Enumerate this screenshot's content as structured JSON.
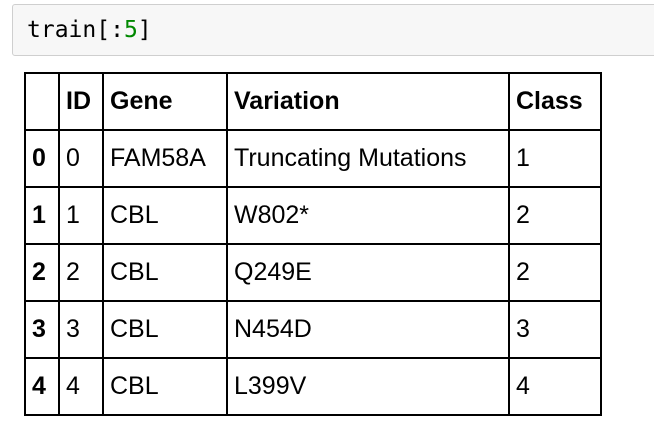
{
  "cell": {
    "code_prefix": "train[:",
    "code_number": "5",
    "code_suffix": "]"
  },
  "table": {
    "columns": [
      "",
      "ID",
      "Gene",
      "Variation",
      "Class"
    ],
    "rows": [
      {
        "index": "0",
        "id": "0",
        "gene": "FAM58A",
        "variation": "Truncating Mutations",
        "class": "1"
      },
      {
        "index": "1",
        "id": "1",
        "gene": "CBL",
        "variation": "W802*",
        "class": "2"
      },
      {
        "index": "2",
        "id": "2",
        "gene": "CBL",
        "variation": "Q249E",
        "class": "2"
      },
      {
        "index": "3",
        "id": "3",
        "gene": "CBL",
        "variation": "N454D",
        "class": "3"
      },
      {
        "index": "4",
        "id": "4",
        "gene": "CBL",
        "variation": "L399V",
        "class": "4"
      }
    ]
  }
}
